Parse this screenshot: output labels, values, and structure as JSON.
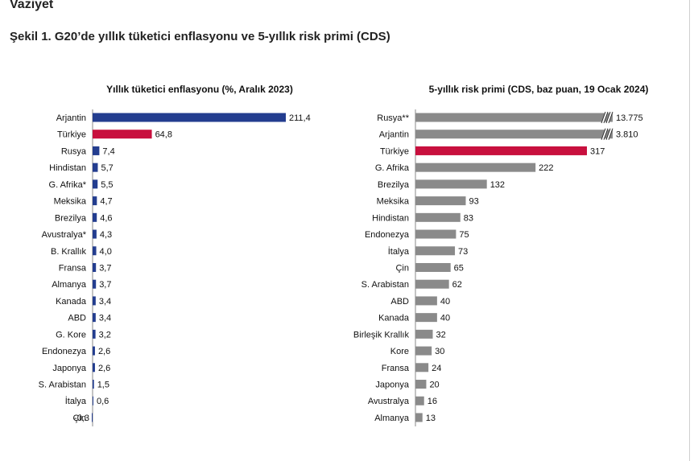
{
  "page": {
    "section_heading": "Vaziyet",
    "figure_title": "Şekil 1. G20’de yıllık tüketici enflasyonu ve 5-yıllık risk primi (CDS)"
  },
  "chart_data": [
    {
      "type": "bar",
      "orientation": "horizontal",
      "title": "Yıllık tüketici enflasyonu (%, Aralık 2023)",
      "xlabel": "",
      "ylabel": "",
      "xlim": [
        -0.3,
        211.4
      ],
      "grid": false,
      "categories": [
        "Arjantin",
        "Türkiye",
        "Rusya",
        "Hindistan",
        "G. Afrika*",
        "Meksika",
        "Brezilya",
        "Avustralya*",
        "B. Krallık",
        "Fransa",
        "Almanya",
        "Kanada",
        "ABD",
        "G. Kore",
        "Endonezya",
        "Japonya",
        "S. Arabistan",
        "İtalya",
        "Çin"
      ],
      "values": [
        211.4,
        64.8,
        7.4,
        5.7,
        5.5,
        4.7,
        4.6,
        4.3,
        4.0,
        3.7,
        3.7,
        3.4,
        3.4,
        3.2,
        2.6,
        2.6,
        1.5,
        0.6,
        -0.3
      ],
      "value_labels": [
        "211,4",
        "64,8",
        "7,4",
        "5,7",
        "5,5",
        "4,7",
        "4,6",
        "4,3",
        "4,0",
        "3,7",
        "3,7",
        "3,4",
        "3,4",
        "3,2",
        "2,6",
        "2,6",
        "1,5",
        "0,6",
        "-0,3"
      ],
      "highlight_category": "Türkiye",
      "colors": {
        "bar": "#233d8f",
        "highlight": "#c8103e"
      }
    },
    {
      "type": "bar",
      "orientation": "horizontal",
      "title": "5-yıllık risk primi (CDS, baz puan, 19 Ocak 2024)",
      "xlabel": "",
      "ylabel": "",
      "grid": false,
      "axis_break": true,
      "broken_categories": [
        "Rusya**",
        "Arjantin"
      ],
      "categories": [
        "Rusya**",
        "Arjantin",
        "Türkiye",
        "G. Afrika",
        "Brezilya",
        "Meksika",
        "Hindistan",
        "Endonezya",
        "İtalya",
        "Çin",
        "S. Arabistan",
        "ABD",
        "Kanada",
        "Birleşik Krallık",
        "Kore",
        "Fransa",
        "Japonya",
        "Avustralya",
        "Almanya"
      ],
      "values": [
        13775,
        3810,
        317,
        222,
        132,
        93,
        83,
        75,
        73,
        65,
        62,
        40,
        40,
        32,
        30,
        24,
        20,
        16,
        13
      ],
      "value_labels": [
        "13.775",
        "3.810",
        "317",
        "222",
        "132",
        "93",
        "83",
        "75",
        "73",
        "65",
        "62",
        "40",
        "40",
        "32",
        "30",
        "24",
        "20",
        "16",
        "13"
      ],
      "highlight_category": "Türkiye",
      "colors": {
        "bar": "#8a8a8a",
        "highlight": "#c8103e"
      }
    }
  ]
}
